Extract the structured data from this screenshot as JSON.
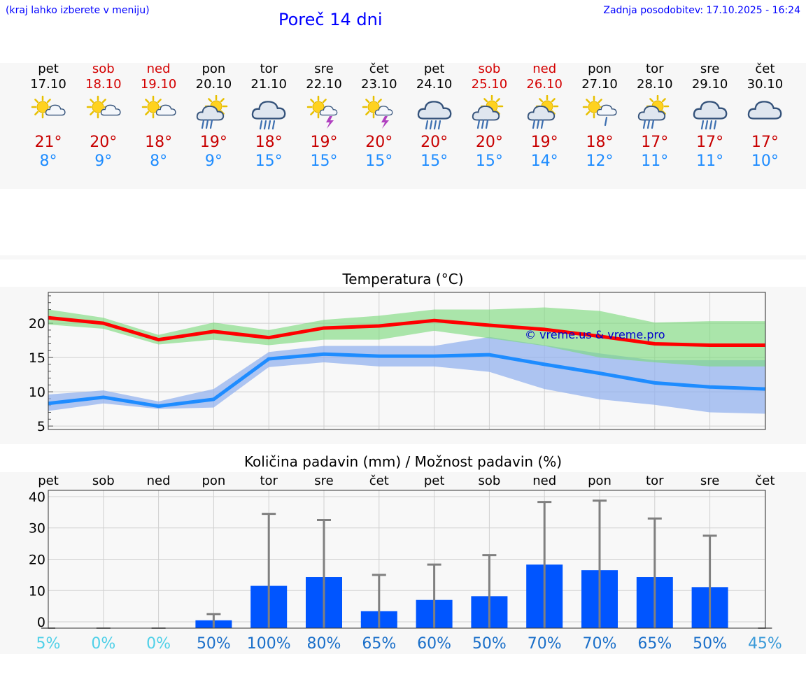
{
  "header": {
    "menu_note": "(kraj lahko izberete v meniju)",
    "title": "Poreč 14 dni",
    "updated": "Zadnja posodobitev: 17.10.2025 - 16:24"
  },
  "colors": {
    "link": "#0000ff",
    "weekend": "#d40000",
    "high": "#c80000",
    "low": "#1e8cff",
    "bar": "#0055ff",
    "hi_band": "#a8e6a8",
    "lo_band": "#a8c4f2"
  },
  "days": [
    {
      "name": "pet",
      "date": "17.10",
      "weekend": false,
      "icon": "sun-cloud-icon",
      "hi": "21°",
      "lo": "8°"
    },
    {
      "name": "sob",
      "date": "18.10",
      "weekend": true,
      "icon": "sun-cloud-icon",
      "hi": "20°",
      "lo": "9°"
    },
    {
      "name": "ned",
      "date": "19.10",
      "weekend": true,
      "icon": "sun-cloud-icon",
      "hi": "18°",
      "lo": "8°"
    },
    {
      "name": "pon",
      "date": "20.10",
      "weekend": false,
      "icon": "sun-cloud-rain-icon",
      "hi": "19°",
      "lo": "9°"
    },
    {
      "name": "tor",
      "date": "21.10",
      "weekend": false,
      "icon": "cloud-rain-icon",
      "hi": "18°",
      "lo": "15°"
    },
    {
      "name": "sre",
      "date": "22.10",
      "weekend": false,
      "icon": "sun-storm-icon",
      "hi": "19°",
      "lo": "15°"
    },
    {
      "name": "čet",
      "date": "23.10",
      "weekend": false,
      "icon": "sun-storm-icon",
      "hi": "20°",
      "lo": "15°"
    },
    {
      "name": "pet",
      "date": "24.10",
      "weekend": false,
      "icon": "cloud-rain-icon",
      "hi": "20°",
      "lo": "15°"
    },
    {
      "name": "sob",
      "date": "25.10",
      "weekend": true,
      "icon": "sun-cloud-rain-icon",
      "hi": "20°",
      "lo": "15°"
    },
    {
      "name": "ned",
      "date": "26.10",
      "weekend": true,
      "icon": "sun-cloud-rain-icon",
      "hi": "19°",
      "lo": "14°"
    },
    {
      "name": "pon",
      "date": "27.10",
      "weekend": false,
      "icon": "sun-cloud-light-rain-icon",
      "hi": "18°",
      "lo": "12°"
    },
    {
      "name": "tor",
      "date": "28.10",
      "weekend": false,
      "icon": "sun-cloud-rain-icon",
      "hi": "17°",
      "lo": "11°"
    },
    {
      "name": "sre",
      "date": "29.10",
      "weekend": false,
      "icon": "cloud-rain-icon",
      "hi": "17°",
      "lo": "11°"
    },
    {
      "name": "čet",
      "date": "30.10",
      "weekend": false,
      "icon": "cloud-icon",
      "hi": "17°",
      "lo": "10°"
    }
  ],
  "chart_data": [
    {
      "type": "line",
      "title": "Temperatura (°C)",
      "x": [
        "17.10",
        "18.10",
        "19.10",
        "20.10",
        "21.10",
        "22.10",
        "23.10",
        "24.10",
        "25.10",
        "26.10",
        "27.10",
        "28.10",
        "29.10",
        "30.10"
      ],
      "ylim": [
        4.5,
        24.5
      ],
      "yticks": [
        5,
        10,
        15,
        20
      ],
      "watermark": "© vreme.us & vreme.pro",
      "series": [
        {
          "name": "max",
          "values": [
            20.8,
            20.0,
            17.6,
            18.8,
            17.9,
            19.3,
            19.6,
            20.4,
            19.7,
            19.1,
            18.1,
            17.0,
            16.8,
            16.8
          ],
          "band_upper": [
            22.0,
            20.8,
            18.3,
            20.1,
            19.0,
            20.5,
            21.1,
            22.0,
            22.0,
            22.3,
            21.8,
            20.1,
            20.3,
            20.3
          ],
          "band_lower": [
            19.8,
            19.2,
            16.9,
            17.6,
            16.8,
            17.6,
            17.6,
            18.9,
            17.8,
            16.7,
            15.0,
            14.3,
            13.7,
            13.7
          ]
        },
        {
          "name": "min",
          "values": [
            8.3,
            9.2,
            7.9,
            8.9,
            14.8,
            15.5,
            15.2,
            15.2,
            15.4,
            14.0,
            12.7,
            11.3,
            10.7,
            10.4
          ],
          "band_upper": [
            9.6,
            10.2,
            8.6,
            10.4,
            15.8,
            16.7,
            16.7,
            16.7,
            18.0,
            16.8,
            15.6,
            14.6,
            14.6,
            14.6
          ],
          "band_lower": [
            7.2,
            8.3,
            7.5,
            7.7,
            13.6,
            14.3,
            13.7,
            13.7,
            12.9,
            10.4,
            8.9,
            8.1,
            7.0,
            6.8
          ]
        }
      ]
    },
    {
      "type": "bar",
      "title": "Količina padavin (mm) / Možnost padavin (%)",
      "categories": [
        "pet",
        "sob",
        "ned",
        "pon",
        "tor",
        "sre",
        "čet",
        "pet",
        "sob",
        "ned",
        "pon",
        "tor",
        "sre",
        "čet"
      ],
      "ylim": [
        -2,
        42
      ],
      "yticks": [
        0,
        10,
        20,
        30,
        40
      ],
      "values": [
        0,
        0,
        0,
        0.5,
        11.5,
        14.3,
        3.4,
        7.0,
        8.2,
        18.3,
        16.5,
        14.3,
        11.1,
        0
      ],
      "error_max": [
        0,
        0,
        0,
        2.5,
        34.5,
        32.5,
        15.0,
        18.3,
        21.3,
        38.3,
        38.7,
        33.0,
        27.5,
        0
      ],
      "probability": [
        "5%",
        "0%",
        "0%",
        "50%",
        "100%",
        "80%",
        "65%",
        "60%",
        "50%",
        "70%",
        "70%",
        "65%",
        "50%",
        "45%"
      ],
      "probability_colors": [
        "#4fd0e8",
        "#4fd0e8",
        "#4fd0e8",
        "#1a6fc9",
        "#1a6fc9",
        "#1a6fc9",
        "#1a6fc9",
        "#1a6fc9",
        "#1a6fc9",
        "#1a6fc9",
        "#1a6fc9",
        "#1a6fc9",
        "#1a6fc9",
        "#3a9ad8"
      ]
    }
  ]
}
